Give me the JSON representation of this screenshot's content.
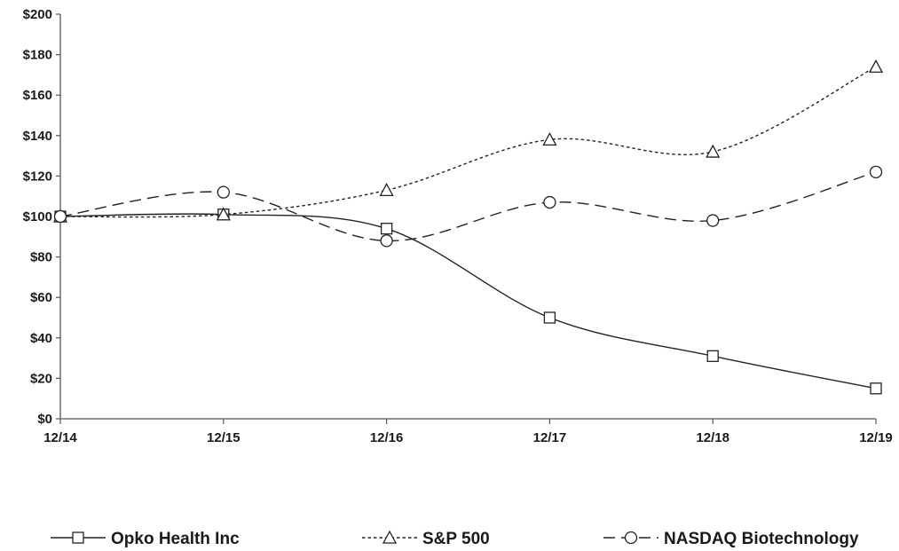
{
  "chart_data": {
    "type": "line",
    "categories": [
      "12/14",
      "12/15",
      "12/16",
      "12/17",
      "12/18",
      "12/19"
    ],
    "y_ticks": [
      "$0",
      "$20",
      "$40",
      "$60",
      "$80",
      "$100",
      "$120",
      "$140",
      "$160",
      "$180",
      "$200"
    ],
    "ylim": [
      0,
      200
    ],
    "grid": false,
    "legend_position": "bottom",
    "series": [
      {
        "name": "Opko Health Inc",
        "values": [
          100,
          101,
          94,
          50,
          31,
          15
        ],
        "marker": "square",
        "dash": "solid",
        "color": "#222222"
      },
      {
        "name": "S&P 500",
        "values": [
          100,
          101,
          113,
          138,
          132,
          174
        ],
        "marker": "triangle",
        "dash": "dotted",
        "color": "#222222"
      },
      {
        "name": "NASDAQ Biotechnology",
        "values": [
          100,
          112,
          88,
          107,
          98,
          122
        ],
        "marker": "circle",
        "dash": "dashed",
        "color": "#222222"
      }
    ]
  }
}
